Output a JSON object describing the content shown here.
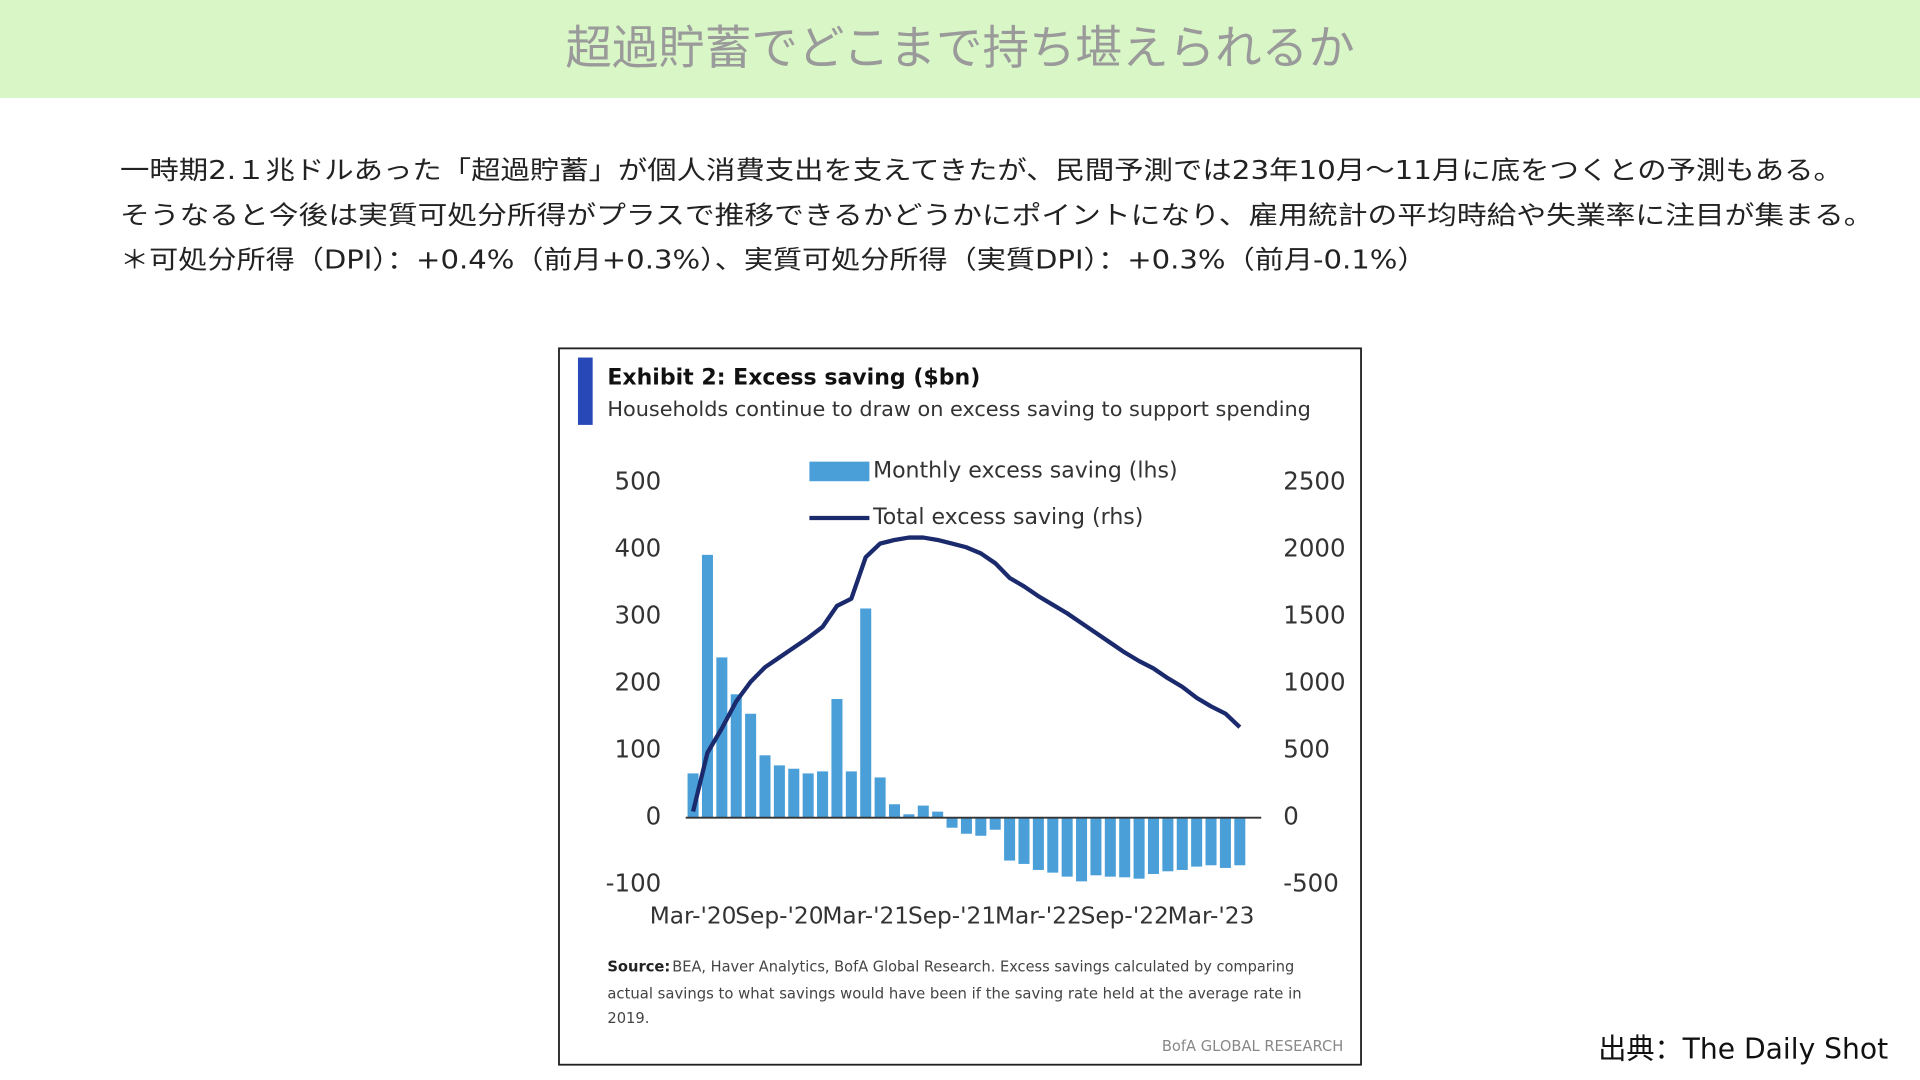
{
  "header": {
    "title": "超過貯蓄でどこまで持ち堪えられるか"
  },
  "body": {
    "lines": [
      "一時期2.１兆ドルあった「超過貯蓄」が個人消費支出を支えてきたが、民間予測では23年10月～11月に底をつくとの予測もある。",
      "そうなると今後は実質可処分所得がプラスで推移できるかどうかにポイントになり、雇用統計の平均時給や失業率に注目が集まる。",
      "＊可処分所得（DPI）：+0.4%（前月+0.3%）、実質可処分所得（実質DPI）：+0.3%（前月-0.1%）"
    ]
  },
  "chart_data": {
    "type": "bar-line",
    "title": "Exhibit 2: Excess saving ($bn)",
    "subtitle": "Households continue to draw on excess saving to support spending",
    "categories": [
      "Mar-'20",
      null,
      null,
      null,
      null,
      null,
      "Sep-'20",
      null,
      null,
      null,
      null,
      null,
      "Mar-'21",
      null,
      null,
      null,
      null,
      null,
      "Sep-'21",
      null,
      null,
      null,
      null,
      null,
      "Mar-'22",
      null,
      null,
      null,
      null,
      null,
      "Sep-'22",
      null,
      null,
      null,
      null,
      null,
      "Mar-'23",
      null,
      null
    ],
    "series": [
      {
        "name": "Monthly excess saving (lhs)",
        "color": "#4a9fd8",
        "values": [
          66,
          392,
          239,
          184,
          155,
          93,
          78,
          73,
          66,
          69,
          177,
          69,
          312,
          60,
          20,
          5,
          18,
          9,
          -15,
          -24,
          -27,
          -18,
          -64,
          -69,
          -78,
          -82,
          -88,
          -95,
          -86,
          -88,
          -89,
          -91,
          -84,
          -80,
          -78,
          -73,
          -71,
          -75,
          -71
        ]
      },
      {
        "name": "Total excess saving (rhs)",
        "color": "#1a2a6c",
        "axis": "y2",
        "values": [
          46,
          484,
          666,
          867,
          1013,
          1122,
          1195,
          1268,
          1341,
          1423,
          1579,
          1633,
          1943,
          2044,
          2071,
          2089,
          2089,
          2071,
          2044,
          2016,
          1971,
          1898,
          1788,
          1725,
          1652,
          1588,
          1524,
          1451,
          1378,
          1305,
          1232,
          1168,
          1113,
          1040,
          976,
          894,
          830,
          776,
          675
        ]
      }
    ],
    "ylim": [
      -100,
      500
    ],
    "yticks": [
      -100,
      0,
      100,
      200,
      300,
      400,
      500
    ],
    "y2lim": [
      -500,
      2500
    ],
    "y2ticks": [
      -500,
      0,
      500,
      1000,
      1500,
      2000,
      2500
    ],
    "source_label": "Source:",
    "source_lines": [
      "BEA, Haver Analytics, BofA Global Research. Excess savings calculated by comparing",
      "actual savings to what savings would have been if the saving rate held at the average rate in",
      "2019."
    ],
    "credit": "BofA GLOBAL RESEARCH"
  },
  "footer": {
    "source": "出典：The Daily Shot"
  }
}
